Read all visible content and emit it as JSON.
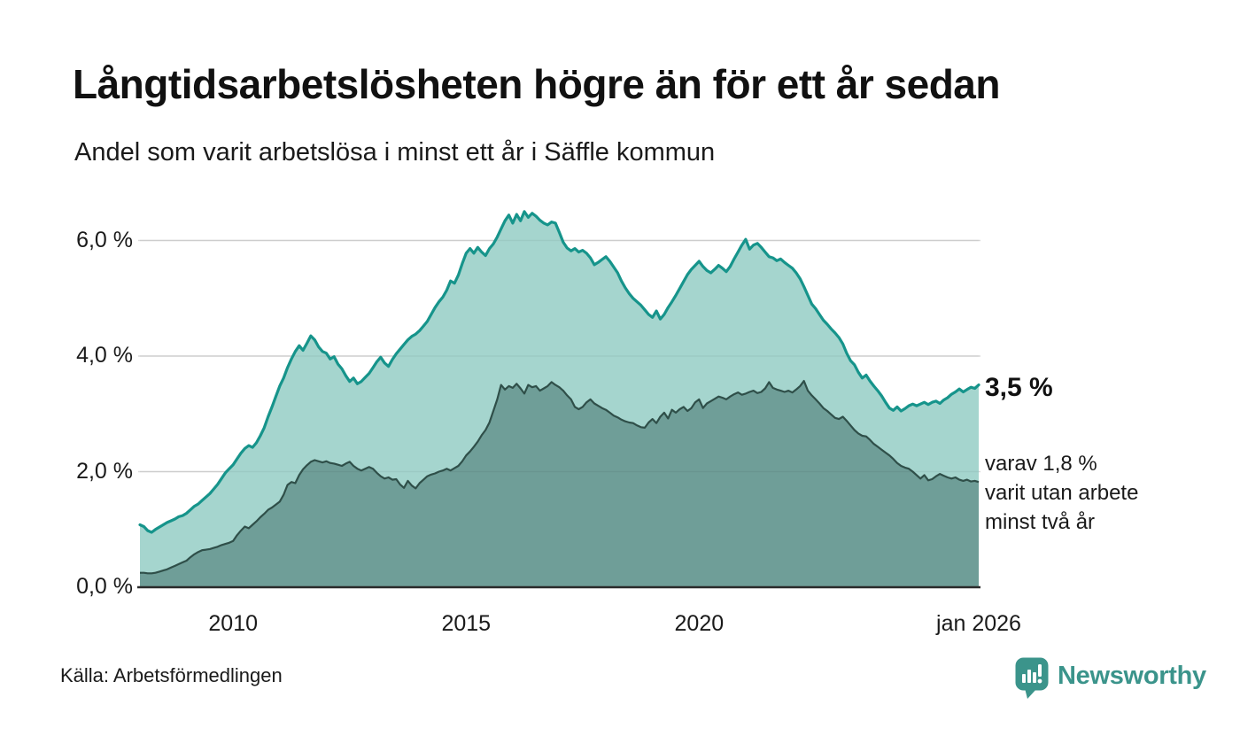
{
  "header": {
    "title": "Långtidsarbetslösheten högre än för ett år sedan",
    "subtitle": "Andel som varit arbetslösa i minst ett år i Säffle kommun"
  },
  "colors": {
    "accent_teal": "#16948b",
    "fill_light": "#a5d5ce",
    "fill_dark": "#6f9e98",
    "line_dark": "#2f4f49",
    "grid": "#d9d9d9",
    "grid_overlay": "rgba(0,0,0,0.05)",
    "axis": "#2b2b2b",
    "logo_teal": "#3b948b",
    "text": "#1a1a1a"
  },
  "chart_data": {
    "type": "area",
    "unit": "%",
    "x_start": 2008,
    "x_end": 2026,
    "x_step_months": 1,
    "x_axis": {
      "ticks": [
        {
          "label": "2010",
          "year": 2010
        },
        {
          "label": "2015",
          "year": 2015
        },
        {
          "label": "2020",
          "year": 2020
        },
        {
          "label": "jan 2026",
          "year": 2026
        }
      ]
    },
    "y_axis": {
      "ticks": [
        {
          "label": "0,0 %",
          "value": 0
        },
        {
          "label": "2,0 %",
          "value": 2
        },
        {
          "label": "4,0 %",
          "value": 4
        },
        {
          "label": "6,0 %",
          "value": 6
        }
      ],
      "range": [
        0,
        6.8
      ],
      "grid_values": [
        2,
        4,
        6
      ]
    },
    "series": [
      {
        "name": "Arbetslösa minst ett år",
        "values": [
          1.08,
          1.05,
          0.98,
          0.95,
          1.0,
          1.04,
          1.08,
          1.12,
          1.15,
          1.18,
          1.22,
          1.24,
          1.28,
          1.34,
          1.4,
          1.44,
          1.5,
          1.56,
          1.62,
          1.7,
          1.78,
          1.88,
          1.98,
          2.05,
          2.12,
          2.22,
          2.32,
          2.4,
          2.45,
          2.42,
          2.5,
          2.62,
          2.76,
          2.95,
          3.12,
          3.3,
          3.48,
          3.62,
          3.8,
          3.95,
          4.08,
          4.18,
          4.1,
          4.22,
          4.35,
          4.28,
          4.16,
          4.08,
          4.05,
          3.95,
          3.99,
          3.86,
          3.78,
          3.66,
          3.56,
          3.62,
          3.52,
          3.56,
          3.63,
          3.7,
          3.8,
          3.9,
          3.98,
          3.88,
          3.82,
          3.94,
          4.04,
          4.12,
          4.2,
          4.28,
          4.34,
          4.38,
          4.44,
          4.52,
          4.6,
          4.72,
          4.84,
          4.94,
          5.02,
          5.14,
          5.3,
          5.26,
          5.4,
          5.6,
          5.78,
          5.86,
          5.78,
          5.88,
          5.8,
          5.74,
          5.86,
          5.94,
          6.06,
          6.2,
          6.34,
          6.44,
          6.3,
          6.45,
          6.34,
          6.5,
          6.4,
          6.47,
          6.42,
          6.35,
          6.3,
          6.27,
          6.32,
          6.3,
          6.14,
          5.97,
          5.87,
          5.82,
          5.86,
          5.8,
          5.83,
          5.78,
          5.7,
          5.58,
          5.62,
          5.67,
          5.72,
          5.64,
          5.54,
          5.44,
          5.3,
          5.18,
          5.08,
          5.0,
          4.94,
          4.88,
          4.8,
          4.72,
          4.67,
          4.78,
          4.64,
          4.72,
          4.84,
          4.94,
          5.05,
          5.17,
          5.29,
          5.41,
          5.5,
          5.57,
          5.64,
          5.55,
          5.48,
          5.44,
          5.5,
          5.57,
          5.52,
          5.46,
          5.55,
          5.68,
          5.8,
          5.92,
          6.02,
          5.85,
          5.92,
          5.95,
          5.88,
          5.8,
          5.72,
          5.7,
          5.65,
          5.68,
          5.62,
          5.57,
          5.52,
          5.44,
          5.34,
          5.2,
          5.05,
          4.9,
          4.82,
          4.72,
          4.62,
          4.55,
          4.47,
          4.4,
          4.32,
          4.21,
          4.05,
          3.92,
          3.85,
          3.72,
          3.62,
          3.67,
          3.57,
          3.48,
          3.4,
          3.31,
          3.2,
          3.1,
          3.06,
          3.12,
          3.05,
          3.09,
          3.14,
          3.17,
          3.14,
          3.17,
          3.2,
          3.16,
          3.2,
          3.22,
          3.18,
          3.24,
          3.28,
          3.34,
          3.38,
          3.43,
          3.38,
          3.42,
          3.46,
          3.44,
          3.5
        ]
      },
      {
        "name": "Arbetslösa minst två år",
        "values": [
          0.25,
          0.25,
          0.24,
          0.24,
          0.25,
          0.27,
          0.29,
          0.31,
          0.34,
          0.37,
          0.4,
          0.43,
          0.46,
          0.52,
          0.57,
          0.61,
          0.64,
          0.65,
          0.66,
          0.68,
          0.7,
          0.73,
          0.75,
          0.77,
          0.8,
          0.9,
          0.98,
          1.05,
          1.02,
          1.08,
          1.14,
          1.21,
          1.27,
          1.34,
          1.38,
          1.43,
          1.48,
          1.6,
          1.77,
          1.82,
          1.8,
          1.94,
          2.04,
          2.11,
          2.17,
          2.2,
          2.18,
          2.16,
          2.18,
          2.15,
          2.14,
          2.12,
          2.1,
          2.14,
          2.17,
          2.1,
          2.05,
          2.02,
          2.05,
          2.08,
          2.05,
          1.98,
          1.92,
          1.88,
          1.9,
          1.86,
          1.87,
          1.78,
          1.72,
          1.84,
          1.76,
          1.71,
          1.8,
          1.86,
          1.92,
          1.95,
          1.97,
          2.0,
          2.02,
          2.05,
          2.02,
          2.06,
          2.1,
          2.18,
          2.28,
          2.35,
          2.43,
          2.52,
          2.63,
          2.72,
          2.85,
          3.05,
          3.25,
          3.5,
          3.42,
          3.48,
          3.45,
          3.52,
          3.44,
          3.35,
          3.5,
          3.46,
          3.48,
          3.4,
          3.44,
          3.48,
          3.55,
          3.5,
          3.46,
          3.4,
          3.32,
          3.25,
          3.12,
          3.08,
          3.12,
          3.2,
          3.25,
          3.18,
          3.14,
          3.1,
          3.07,
          3.02,
          2.97,
          2.94,
          2.9,
          2.87,
          2.85,
          2.84,
          2.8,
          2.77,
          2.76,
          2.85,
          2.91,
          2.84,
          2.95,
          3.02,
          2.92,
          3.07,
          3.02,
          3.08,
          3.12,
          3.05,
          3.1,
          3.2,
          3.25,
          3.1,
          3.18,
          3.22,
          3.26,
          3.3,
          3.28,
          3.25,
          3.3,
          3.34,
          3.37,
          3.33,
          3.35,
          3.38,
          3.4,
          3.36,
          3.38,
          3.44,
          3.55,
          3.45,
          3.42,
          3.4,
          3.38,
          3.4,
          3.37,
          3.42,
          3.48,
          3.57,
          3.4,
          3.32,
          3.25,
          3.18,
          3.1,
          3.05,
          2.99,
          2.93,
          2.91,
          2.95,
          2.88,
          2.8,
          2.72,
          2.66,
          2.62,
          2.61,
          2.55,
          2.48,
          2.43,
          2.38,
          2.33,
          2.28,
          2.22,
          2.15,
          2.1,
          2.07,
          2.05,
          2.0,
          1.94,
          1.88,
          1.94,
          1.85,
          1.87,
          1.92,
          1.96,
          1.93,
          1.9,
          1.88,
          1.9,
          1.86,
          1.84,
          1.86,
          1.83,
          1.84,
          1.82
        ]
      }
    ],
    "annotations": {
      "end_value_label": "3,5 %",
      "secondary_label_lines": [
        "varav 1,8 %",
        "varit utan arbete",
        "minst två år"
      ]
    }
  },
  "footer": {
    "source": "Källa: Arbetsförmedlingen",
    "logo_text": "Newsworthy"
  }
}
